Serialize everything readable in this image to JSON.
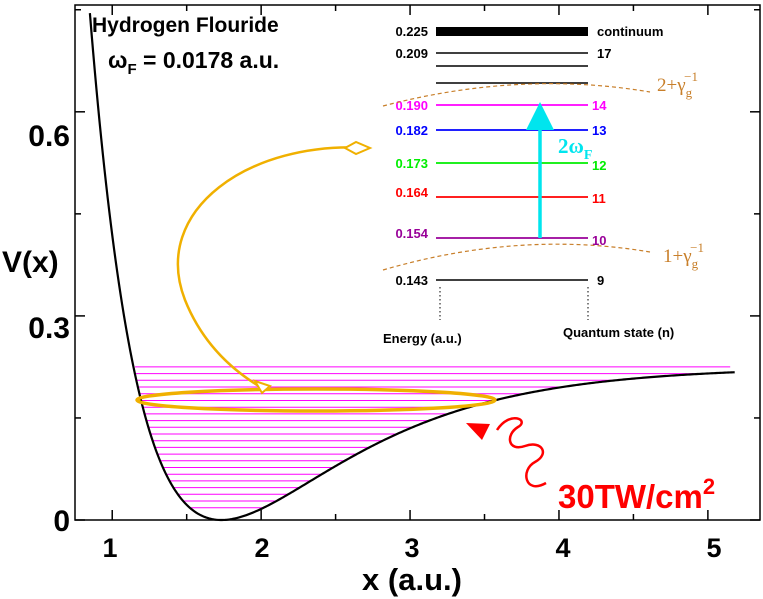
{
  "title": "Hydrogen Flouride",
  "omega": {
    "sym": "ω",
    "sub": "F",
    "rest": " = 0.0178 a.u."
  },
  "chart_data": {
    "type": "line",
    "xlabel": "x (a.u.)",
    "ylabel": "V(x)",
    "x_ticks": [
      "1",
      "2",
      "3",
      "4",
      "5"
    ],
    "y_ticks": [
      "0",
      "0.3",
      "0.6"
    ],
    "xlim": [
      0.75,
      5.35
    ],
    "ylim": [
      0,
      0.757
    ],
    "morse_potential": {
      "De": 0.225,
      "x0": 1.733,
      "a": 1.174,
      "x_range": [
        0.85,
        5.18
      ]
    },
    "vib_levels_count": 22,
    "energy_levels": [
      {
        "energy": "0.225",
        "state": "continuum",
        "color": "#000000"
      },
      {
        "energy": "0.209",
        "state": "17",
        "color": "#000000"
      },
      {
        "energy": "",
        "state": "",
        "color": "#000000"
      },
      {
        "energy": "",
        "state": "",
        "color": "#000000"
      },
      {
        "energy": "0.190",
        "state": "14",
        "color": "#ff00ff"
      },
      {
        "energy": "0.182",
        "state": "13",
        "color": "#0000ff"
      },
      {
        "energy": "0.173",
        "state": "12",
        "color": "#00ee00"
      },
      {
        "energy": "0.164",
        "state": "11",
        "color": "#ff0000"
      },
      {
        "energy": "0.154",
        "state": "10",
        "color": "#990099"
      },
      {
        "energy": "0.143",
        "state": "9",
        "color": "#000000"
      }
    ],
    "inset_xlabel": "Energy (a.u.)",
    "inset_ylabel": "Quantum state (n)",
    "arrow_label": {
      "main": "2ω",
      "sub": "F"
    },
    "gamma_labels": [
      {
        "prefix": "2+",
        "sym": "γ",
        "sub": "g",
        "sup": "−1"
      },
      {
        "prefix": "1+",
        "sym": "γ",
        "sub": "g",
        "sup": "−1"
      }
    ],
    "laser_label": {
      "main": "30TW/cm",
      "sup": "2"
    }
  },
  "colors": {
    "vib_lines": "#ff00ff",
    "ellipse": "#f0b000",
    "arrow": "#00e5ee",
    "laser": "#ff0000",
    "gamma": "#c87f2a"
  }
}
